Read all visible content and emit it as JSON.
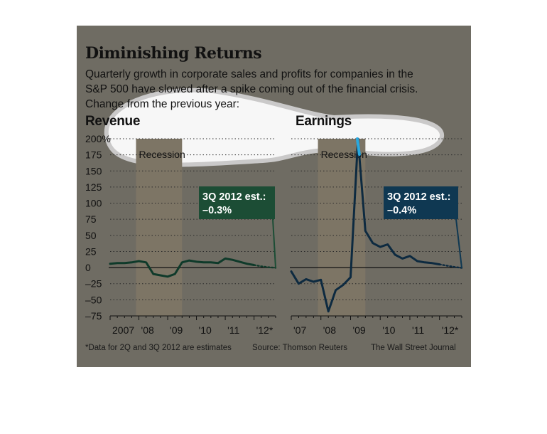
{
  "header": {
    "title": "Diminishing Returns",
    "subtitle_line1": "Quarterly growth in corporate sales and profits for companies in the",
    "subtitle_line2": "S&P 500 have slowed after a spike coming out of the financial crisis.",
    "subtitle_line3": "Change from the previous year:"
  },
  "footer": {
    "note": "*Data for 2Q and 3Q 2012 are estimates",
    "source": "Source: Thomson Reuters",
    "credit": "The Wall Street Journal"
  },
  "colors": {
    "panel_bg": "#6f6c63",
    "recession_band": "#7d7565",
    "revenue_line": "#0f3a2a",
    "earnings_line": "#0d2a40",
    "earnings_peak": "#29a9e0",
    "revenue_callout": "#1c4d35",
    "earnings_callout": "#0f3852",
    "callout_text": "#ffffff"
  },
  "chart_data": [
    {
      "type": "line",
      "title": "Revenue",
      "unit": "%",
      "ylim": [
        -75,
        200
      ],
      "yticks": [
        200,
        175,
        150,
        125,
        100,
        75,
        50,
        25,
        0,
        -25,
        -50,
        -75
      ],
      "ytick_labels": [
        "200%",
        "175",
        "150",
        "125",
        "100",
        "75",
        "50",
        "25",
        "0",
        "–25",
        "–50",
        "–75"
      ],
      "xlim": [
        2007.0,
        2012.75
      ],
      "xticks": [
        2007.0,
        2008.0,
        2009.0,
        2010.0,
        2011.0,
        2012.0
      ],
      "xtick_labels": [
        "2007",
        "'08",
        "'09",
        "'10",
        "'11",
        "'12*"
      ],
      "grid": true,
      "recession": {
        "label": "Recession",
        "start": 2007.9,
        "end": 2009.5
      },
      "series": [
        {
          "x": [
            2007.0,
            2007.25,
            2007.5,
            2007.75,
            2008.0,
            2008.25,
            2008.5,
            2008.75,
            2009.0,
            2009.25,
            2009.5,
            2009.75,
            2010.0,
            2010.25,
            2010.5,
            2010.75,
            2011.0,
            2011.25,
            2011.5,
            2011.75,
            2012.0
          ],
          "values": [
            6,
            7,
            7,
            8,
            10,
            8,
            -10,
            -12,
            -14,
            -10,
            8,
            11,
            9,
            8,
            8,
            7,
            14,
            12,
            9,
            6,
            4
          ]
        },
        {
          "estimate": true,
          "x": [
            2012.0,
            2012.25,
            2012.5,
            2012.75
          ],
          "values": [
            4,
            2,
            0.5,
            -0.3
          ]
        }
      ],
      "callout": {
        "line1": "3Q 2012 est.:",
        "line2": "–0.3%",
        "x": 2012.75,
        "y": -0.3
      }
    },
    {
      "type": "line",
      "title": "Earnings",
      "unit": "%",
      "ylim": [
        -75,
        200
      ],
      "yticks": [
        200,
        175,
        150,
        125,
        100,
        75,
        50,
        25,
        0,
        -25,
        -50,
        -75
      ],
      "xlim": [
        2007.0,
        2012.75
      ],
      "xticks": [
        2007.0,
        2008.0,
        2009.0,
        2010.0,
        2011.0,
        2012.0
      ],
      "xtick_labels": [
        "'07",
        "'08",
        "'09",
        "'10",
        "'11",
        "'12*"
      ],
      "grid": true,
      "recession": {
        "label": "Recession",
        "start": 2007.9,
        "end": 2009.5
      },
      "series": [
        {
          "x": [
            2007.0,
            2007.25,
            2007.5,
            2007.75,
            2008.0,
            2008.25,
            2008.5,
            2008.75,
            2009.0,
            2009.25,
            2009.5,
            2009.75,
            2010.0,
            2010.25,
            2010.5,
            2010.75,
            2011.0,
            2011.25,
            2011.5,
            2011.75,
            2012.0
          ],
          "values": [
            -6,
            -25,
            -18,
            -22,
            -19,
            -68,
            -35,
            -27,
            -15,
            200,
            57,
            38,
            32,
            36,
            20,
            14,
            18,
            10,
            8,
            7,
            5
          ]
        },
        {
          "estimate": true,
          "x": [
            2012.0,
            2012.25,
            2012.5,
            2012.75
          ],
          "values": [
            5,
            3,
            1,
            -0.4
          ]
        }
      ],
      "callout": {
        "line1": "3Q 2012 est.:",
        "line2": "–0.4%",
        "x": 2012.75,
        "y": -0.4
      }
    }
  ]
}
